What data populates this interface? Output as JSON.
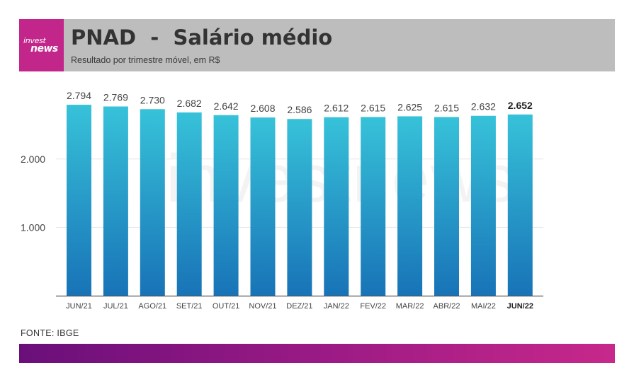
{
  "header": {
    "logo_line1": "invest",
    "logo_line2": "news",
    "title": "PNAD  -  Salário médio",
    "subtitle": "Resultado por trimestre móvel, em R$"
  },
  "watermark": "investnews",
  "source": "FONTE: IBGE",
  "colors": {
    "bar_top": "#37c2d9",
    "bar_bottom": "#1873b7",
    "header_bg": "#bdbdbd",
    "logo_bg": "#c2268a",
    "footer_start": "#6a0f7a",
    "footer_end": "#c7288b"
  },
  "chart_data": {
    "type": "bar",
    "title": "PNAD  -  Salário médio",
    "subtitle": "Resultado por trimestre móvel, em R$",
    "categories": [
      "JUN/21",
      "JUL/21",
      "AGO/21",
      "SET/21",
      "OUT/21",
      "NOV/21",
      "DEZ/21",
      "JAN/22",
      "FEV/22",
      "MAR/22",
      "ABR/22",
      "MAI/22",
      "JUN/22"
    ],
    "values": [
      2794,
      2769,
      2730,
      2682,
      2642,
      2608,
      2586,
      2612,
      2615,
      2625,
      2615,
      2632,
      2652
    ],
    "value_labels": [
      "2.794",
      "2.769",
      "2.730",
      "2.682",
      "2.642",
      "2.608",
      "2.586",
      "2.612",
      "2.615",
      "2.625",
      "2.615",
      "2.632",
      "2.652"
    ],
    "highlight_category": "JUN/22",
    "yticks": [
      1000,
      2000
    ],
    "ytick_labels": [
      "1.000",
      "2.000"
    ],
    "ylim": [
      0,
      3000
    ],
    "grid": true,
    "xlabel": "",
    "ylabel": ""
  }
}
